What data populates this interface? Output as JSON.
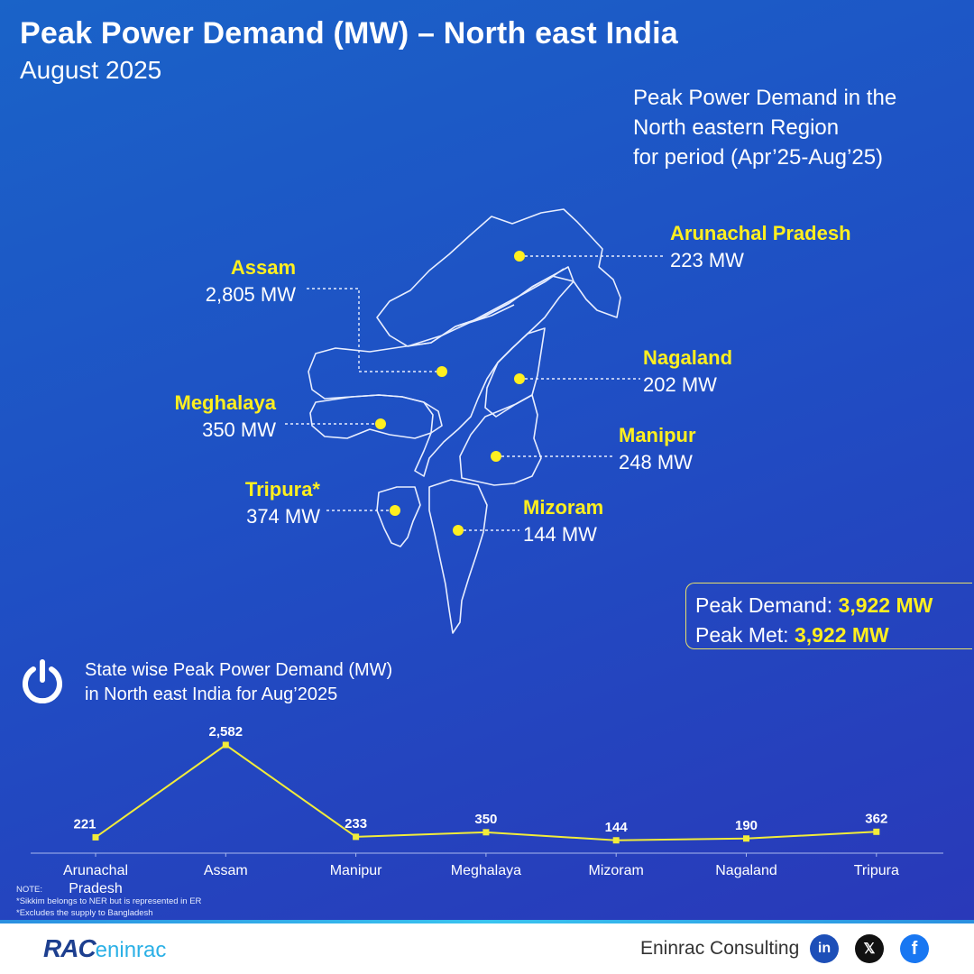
{
  "header": {
    "title": "Peak Power Demand (MW) – North east India",
    "subtitle": "August 2025"
  },
  "period_note": {
    "lines": [
      "Peak Power Demand in the",
      "North eastern Region",
      "for period (Apr’25-Aug’25)"
    ]
  },
  "map": {
    "states": [
      {
        "key": "arunachal",
        "name": "Arunachal Pradesh",
        "value": "223 MW"
      },
      {
        "key": "assam",
        "name": "Assam",
        "value": "2,805 MW"
      },
      {
        "key": "nagaland",
        "name": "Nagaland",
        "value": "202 MW"
      },
      {
        "key": "meghalaya",
        "name": "Meghalaya",
        "value": "350 MW"
      },
      {
        "key": "manipur",
        "name": "Manipur",
        "value": "248 MW"
      },
      {
        "key": "tripura",
        "name": "Tripura*",
        "value": "374 MW"
      },
      {
        "key": "mizoram",
        "name": "Mizoram",
        "value": "144 MW"
      }
    ]
  },
  "summary": {
    "demand_label": "Peak Demand:",
    "demand_value": "3,922 MW",
    "met_label": "Peak Met:",
    "met_value": "3,922 MW"
  },
  "colors": {
    "accent": "#ffef1f",
    "line": "#f2ec3a",
    "background": "#1f4fc4"
  },
  "chart_data": {
    "type": "line",
    "title_lines": [
      "State wise Peak Power Demand (MW)",
      "in North east India for Aug’2025"
    ],
    "categories": [
      "Arunachal Pradesh",
      "Assam",
      "Manipur",
      "Meghalaya",
      "Mizoram",
      "Nagaland",
      "Tripura"
    ],
    "values": [
      221,
      2582,
      233,
      350,
      144,
      190,
      362
    ],
    "value_labels": [
      "221",
      "2,582",
      "233",
      "350",
      "144",
      "190",
      "362"
    ],
    "ylim": [
      0,
      2700
    ],
    "grid": false
  },
  "notes": {
    "label": "NOTE:",
    "lines": [
      "*Sikkim belongs to NER but is represented in ER",
      "*Excludes the supply to Bangladesh"
    ]
  },
  "footer": {
    "logo_main": "RAC",
    "logo_sub": "eninrac",
    "company": "Eninrac Consulting",
    "icons": [
      "linkedin-icon",
      "x-icon",
      "facebook-icon"
    ],
    "linkedin": "in",
    "x": "𝕏",
    "facebook": "f"
  }
}
